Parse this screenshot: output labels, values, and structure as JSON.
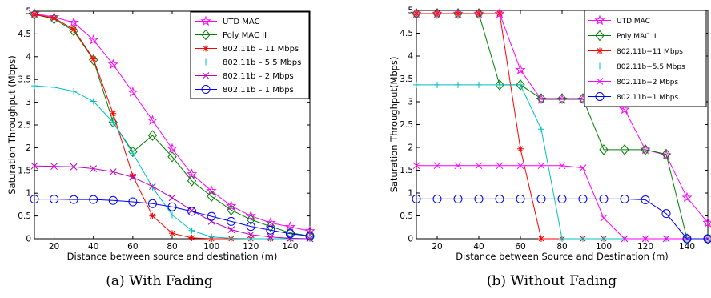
{
  "colors": {
    "magenta": "#ff00ff",
    "green": "#008000",
    "red": "#ff0000",
    "cyan": "#00bfbf",
    "purple": "#bf00bf",
    "blue": "#0000ff"
  },
  "captions": [
    "(a) With Fading",
    "(b) Without Fading"
  ],
  "chart_data": [
    {
      "type": "line",
      "title": "",
      "xlabel": "Distance between source and destination (m)",
      "ylabel": "Saturation Throughput (Mbps)",
      "xlim": [
        10,
        150
      ],
      "ylim": [
        0,
        5
      ],
      "xticks": [
        20,
        40,
        60,
        80,
        100,
        120,
        140
      ],
      "yticks": [
        0,
        0.5,
        1,
        1.5,
        2,
        2.5,
        3,
        3.5,
        4,
        4.5,
        5
      ],
      "ytick_labels": [
        "0",
        "0.5",
        "1",
        "1.5",
        "2",
        "2.5",
        "3",
        "3.5",
        "4",
        "4.5",
        "5"
      ],
      "grid": false,
      "legend_position": "top-right",
      "x": [
        10,
        20,
        30,
        40,
        50,
        60,
        70,
        80,
        90,
        100,
        110,
        120,
        130,
        140,
        150
      ],
      "series": [
        {
          "name": "UTD MAC",
          "color": "#ff00ff",
          "marker": "star",
          "values": [
            4.95,
            4.87,
            4.75,
            4.37,
            3.83,
            3.22,
            2.6,
            1.98,
            1.42,
            1.05,
            0.72,
            0.5,
            0.35,
            0.26,
            0.17
          ]
        },
        {
          "name": "Poly MAC II",
          "color": "#008000",
          "marker": "diamond",
          "values": [
            4.93,
            4.83,
            4.57,
            3.93,
            2.56,
            1.91,
            2.27,
            1.8,
            1.27,
            0.93,
            0.63,
            0.42,
            0.27,
            0.13,
            0.06
          ]
        },
        {
          "name": "802.11b – 11 Mbps",
          "color": "#ff0000",
          "marker": "asterisk",
          "values": [
            4.93,
            4.85,
            4.6,
            3.95,
            2.75,
            1.38,
            0.5,
            0.12,
            0.02,
            0,
            0,
            0,
            0,
            0,
            0
          ]
        },
        {
          "name": "802.11b – 5.5 Mbps",
          "color": "#00bfbf",
          "marker": "plus",
          "values": [
            3.36,
            3.33,
            3.24,
            3.02,
            2.56,
            1.88,
            1.13,
            0.52,
            0.18,
            0.04,
            0.01,
            0,
            0,
            0,
            0
          ]
        },
        {
          "name": "802.11b – 2 Mbps",
          "color": "#bf00bf",
          "marker": "x",
          "values": [
            1.6,
            1.59,
            1.58,
            1.54,
            1.47,
            1.35,
            1.15,
            0.9,
            0.62,
            0.38,
            0.2,
            0.09,
            0.04,
            0.01,
            0
          ]
        },
        {
          "name": "802.11b – 1 Mbps",
          "color": "#0000ff",
          "marker": "circle",
          "values": [
            0.87,
            0.87,
            0.86,
            0.86,
            0.84,
            0.81,
            0.77,
            0.7,
            0.6,
            0.49,
            0.38,
            0.27,
            0.19,
            0.11,
            0.06
          ]
        }
      ]
    },
    {
      "type": "line",
      "title": "",
      "xlabel": "Distance between Source and Destination (m)",
      "ylabel": "Saturation Throughput(Mbps)",
      "xlim": [
        10,
        150
      ],
      "ylim": [
        0,
        5
      ],
      "xticks": [
        20,
        40,
        60,
        80,
        100,
        120,
        140
      ],
      "yticks": [
        0,
        0.5,
        1,
        1.5,
        2,
        2.5,
        3,
        3.5,
        4,
        4.5,
        5
      ],
      "ytick_labels": [
        "0",
        "0.5",
        "1",
        "1.5",
        "2",
        "2.5",
        "3",
        "3.5",
        "4",
        "4.5",
        "5"
      ],
      "grid": false,
      "legend_position": "top-right",
      "x": [
        10,
        20,
        30,
        40,
        50,
        60,
        70,
        80,
        90,
        100,
        110,
        120,
        130,
        140,
        150
      ],
      "series": [
        {
          "name": "UTD MAC",
          "color": "#ff00ff",
          "marker": "star",
          "values": [
            4.93,
            4.93,
            4.93,
            4.93,
            4.93,
            3.7,
            3.05,
            3.05,
            3.05,
            3.05,
            2.83,
            1.95,
            1.83,
            0.9,
            0.35
          ]
        },
        {
          "name": "Poly MAC II",
          "color": "#008000",
          "marker": "diamond",
          "values": [
            4.93,
            4.93,
            4.93,
            4.93,
            3.37,
            3.37,
            3.07,
            3.07,
            3.07,
            1.95,
            1.95,
            1.95,
            1.85,
            0,
            0
          ]
        },
        {
          "name": "802.11b−11 Mbps",
          "color": "#ff0000",
          "marker": "asterisk",
          "values": [
            4.93,
            4.93,
            4.93,
            4.93,
            4.93,
            1.97,
            0,
            0,
            0,
            0,
            0,
            0,
            0,
            0,
            0
          ]
        },
        {
          "name": "802.11b−5.5 Mbps",
          "color": "#00bfbf",
          "marker": "plus",
          "values": [
            3.37,
            3.37,
            3.37,
            3.37,
            3.37,
            3.37,
            2.4,
            0,
            0,
            0,
            0,
            0,
            0,
            0,
            0
          ]
        },
        {
          "name": "802.11b−2 Mbps",
          "color": "#ff00ff",
          "marker": "x",
          "values": [
            1.6,
            1.6,
            1.6,
            1.6,
            1.6,
            1.6,
            1.6,
            1.6,
            1.55,
            0.45,
            0,
            0,
            0,
            0,
            0
          ]
        },
        {
          "name": "802.11b−1 Mbps",
          "color": "#0000ff",
          "marker": "circle",
          "values": [
            0.87,
            0.87,
            0.87,
            0.87,
            0.87,
            0.87,
            0.87,
            0.87,
            0.87,
            0.87,
            0.87,
            0.85,
            0.55,
            0,
            0
          ]
        }
      ]
    }
  ]
}
